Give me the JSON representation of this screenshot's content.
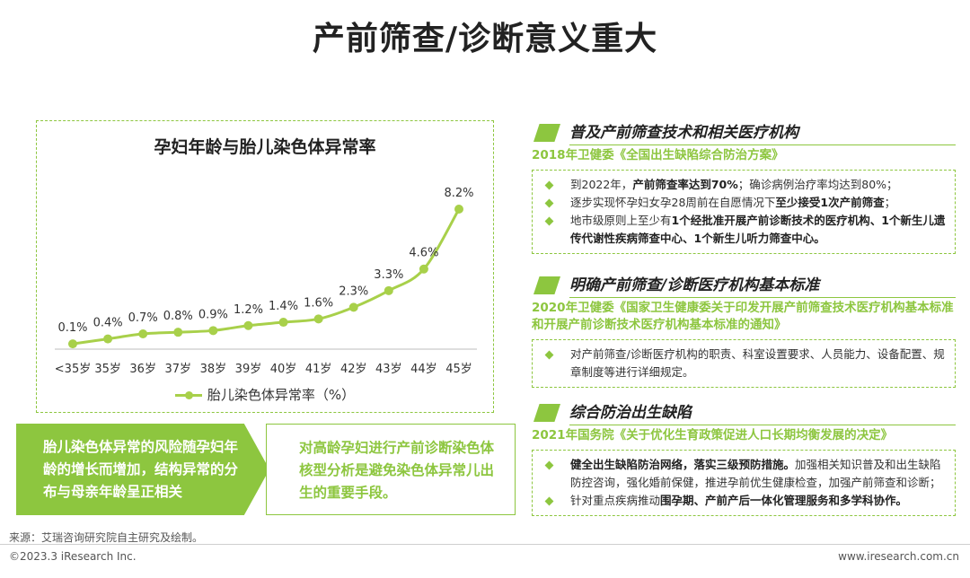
{
  "page": {
    "title": "产前筛查/诊断意义重大"
  },
  "chart_data": {
    "type": "line",
    "title": "孕妇年龄与胎儿染色体异常率",
    "categories": [
      "<35岁",
      "35岁",
      "36岁",
      "37岁",
      "38岁",
      "39岁",
      "40岁",
      "41岁",
      "42岁",
      "43岁",
      "44岁",
      "45岁"
    ],
    "series": [
      {
        "name": "胎儿染色体异常率（%）",
        "values": [
          0.1,
          0.4,
          0.7,
          0.8,
          0.9,
          1.2,
          1.4,
          1.6,
          2.3,
          3.3,
          4.6,
          8.2
        ],
        "labels": [
          "0.1%",
          "0.4%",
          "0.7%",
          "0.8%",
          "0.9%",
          "1.2%",
          "1.4%",
          "1.6%",
          "2.3%",
          "3.3%",
          "4.6%",
          "8.2%"
        ]
      }
    ],
    "ylim": [
      0,
      9
    ],
    "grid": false,
    "legend": "bottom",
    "color": "#a8d04a"
  },
  "conclusions": {
    "left": "胎儿染色体异常的风险随孕妇年龄的增长而增加，结构异常的分布与母亲年龄呈正相关",
    "right": "对高龄孕妇进行产前诊断染色体核型分析是避免染色体异常儿出生的重要手段。"
  },
  "sections": [
    {
      "title": "普及产前筛查技术和相关医疗机构",
      "subtitle": "2018年卫健委《全国出生缺陷综合防治方案》",
      "bullets": [
        {
          "parts": [
            {
              "t": "到2022年，",
              "b": false
            },
            {
              "t": "产前筛查率达到70%",
              "b": true
            },
            {
              "t": "；确诊病例治疗率均达到80%；",
              "b": false
            }
          ]
        },
        {
          "parts": [
            {
              "t": "逐步实现怀孕妇女孕28周前在自愿情况下",
              "b": false
            },
            {
              "t": "至少接受1次产前筛查",
              "b": true
            },
            {
              "t": "；",
              "b": false
            }
          ]
        },
        {
          "parts": [
            {
              "t": "地市级原则上至少有",
              "b": false
            },
            {
              "t": "1个经批准开展产前诊断技术的医疗机构、1个新生儿遗传代谢性疾病筛查中心、1个新生儿听力筛查中心。",
              "b": true
            }
          ]
        }
      ]
    },
    {
      "title": "明确产前筛查/诊断医疗机构基本标准",
      "subtitle": "2020年卫健委《国家卫生健康委关于印发开展产前筛查技术医疗机构基本标准和开展产前诊断技术医疗机构基本标准的通知》",
      "bullets": [
        {
          "parts": [
            {
              "t": "对产前筛查/诊断医疗机构的职责、科室设置要求、人员能力、设备配置、规章制度等进行详细规定。",
              "b": false
            }
          ]
        }
      ]
    },
    {
      "title": "综合防治出生缺陷",
      "subtitle": "2021年国务院《关于优化生育政策促进人口长期均衡发展的决定》",
      "bullets": [
        {
          "parts": [
            {
              "t": "健全出生缺陷防治网络，落实三级预防措施。",
              "b": true
            },
            {
              "t": "加强相关知识普及和出生缺陷防控咨询，强化婚前保健，推进孕前优生健康检查，加强产前筛查和诊断；",
              "b": false
            }
          ]
        },
        {
          "parts": [
            {
              "t": "针对重点疾病推动",
              "b": false
            },
            {
              "t": "围孕期、产前产后一体化管理服务和多学科协作。",
              "b": true
            }
          ]
        }
      ]
    }
  ],
  "footer": {
    "source": "来源：艾瑞咨询研究院自主研究及绘制。",
    "copyright": "©2023.3 iResearch Inc.",
    "site": "www.iresearch.com.cn"
  }
}
